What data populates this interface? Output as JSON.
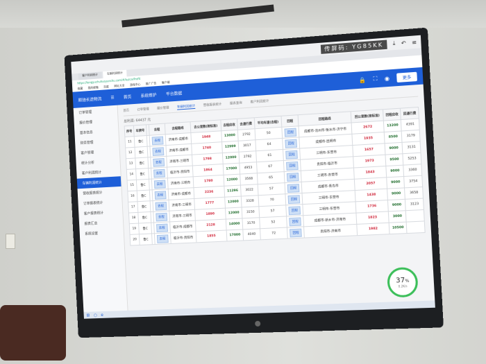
{
  "screen": {
    "remote_code_label": "传屏码:",
    "remote_code": "YG85KK",
    "browser_tabs": [
      "客户利润统计",
      "车辆利润统计"
    ],
    "address": "https://tongyuchuhuoyunshu.com/#/ku/carProfit",
    "bookmarks": [
      "收藏",
      "我的邮箱",
      "百度",
      "网址大全",
      "游戏中心",
      "推广广告",
      "客户端"
    ],
    "app_title": "顺驰长途物流",
    "top_nav": [
      "首页",
      "系统维护",
      "平台数据"
    ],
    "more_button": "更多",
    "sidebar": [
      "订单管理",
      "报价管理",
      "基本信息",
      "财务管理",
      "客户管理",
      "统计分析",
      "客户利润统计",
      "车辆利润统计",
      "营收报表统计",
      "订单报表统计",
      "客户报表统计",
      "报表汇总",
      "系统设置"
    ],
    "sidebar_active": 7,
    "page_tabs": [
      "首页",
      "订单管理",
      "报价管理",
      "车辆利润统计",
      "营收报表统计",
      "报表查询",
      "客户利润统计"
    ],
    "page_tab_active": 3,
    "total_profit_label": "总利润:",
    "total_profit": "64437",
    "total_profit_unit": "元",
    "columns": [
      "序号",
      "车牌号",
      "",
      "去程",
      "去程路线",
      "去公里数(按标准)",
      "去程应收",
      "去通行费",
      "平均车速(去程)",
      "回程",
      "回程路线",
      "回公里数(按标准)",
      "回程应收",
      "回通行费"
    ],
    "go_button": "去程",
    "return_button": "回程",
    "rows": [
      {
        "no": "11",
        "plate": "鲁C",
        "route": "济南市-成都市",
        "km": "1948",
        "fee": "13000",
        "toll": "2792",
        "speed": "50",
        "rroute": "成都市-沧州市-衡水市-济宁市",
        "rkm": "2672",
        "rfee": "13200",
        "rtoll": "4391"
      },
      {
        "no": "12",
        "plate": "鲁C",
        "route": "济南市-成都市",
        "km": "1740",
        "fee": "12999",
        "toll": "3017",
        "speed": "64",
        "rroute": "成都市-昆明市",
        "rkm": "1935",
        "rfee": "8500",
        "rtoll": "3179"
      },
      {
        "no": "13",
        "plate": "鲁C",
        "route": "济南市-三明市",
        "km": "1798",
        "fee": "12000",
        "toll": "2792",
        "speed": "61",
        "rroute": "三明市-东营市",
        "rkm": "1657",
        "rfee": "9000",
        "rtoll": "3131"
      },
      {
        "no": "14",
        "plate": "鲁C",
        "route": "临沂市-贵阳市",
        "km": "1864",
        "fee": "17000",
        "toll": "4953",
        "speed": "67",
        "rroute": "贵阳市-临沂市",
        "rkm": "1973",
        "rfee": "9500",
        "rtoll": "5253"
      },
      {
        "no": "15",
        "plate": "鲁C",
        "route": "济南市-三明市",
        "km": "1780",
        "fee": "12000",
        "toll": "3568",
        "speed": "65",
        "rroute": "三明市-东营市",
        "rkm": "1843",
        "rfee": "9000",
        "rtoll": "3360"
      },
      {
        "no": "16",
        "plate": "鲁C",
        "route": "济南市-成都市",
        "km": "2236",
        "fee": "11296",
        "toll": "3022",
        "speed": "57",
        "rroute": "成都市-青岛市",
        "rkm": "2057",
        "rfee": "9000",
        "rtoll": "3754"
      },
      {
        "no": "17",
        "plate": "鲁C",
        "route": "济南市-三明市",
        "km": "1777",
        "fee": "12000",
        "toll": "3328",
        "speed": "70",
        "rroute": "三明市-东营市",
        "rkm": "1438",
        "rfee": "9000",
        "rtoll": "3658"
      },
      {
        "no": "18",
        "plate": "鲁C",
        "route": "济南市-三明市",
        "km": "1890",
        "fee": "12000",
        "toll": "3150",
        "speed": "57",
        "rroute": "三明市-东营市",
        "rkm": "1736",
        "rfee": "9000",
        "rtoll": "3123"
      },
      {
        "no": "19",
        "plate": "鲁C",
        "route": "临沂市-成都市",
        "km": "2128",
        "fee": "14000",
        "toll": "3170",
        "speed": "52",
        "rroute": "成都市-新乡市-济南市",
        "rkm": "1823",
        "rfee": "3000",
        "rtoll": ""
      },
      {
        "no": "20",
        "plate": "鲁C",
        "route": "临沂市-贵阳市",
        "km": "1855",
        "fee": "17000",
        "toll": "4040",
        "speed": "72",
        "rroute": "贵阳市-济南市",
        "rkm": "1982",
        "rfee": "10500",
        "rtoll": ""
      }
    ],
    "gauge_value": "37",
    "gauge_unit": "%",
    "gauge_sub": "0.2K/s",
    "colors": {
      "brand": "#1e5fd8",
      "km_red": "#d0263a",
      "fee_green": "#1f6d2c"
    }
  }
}
